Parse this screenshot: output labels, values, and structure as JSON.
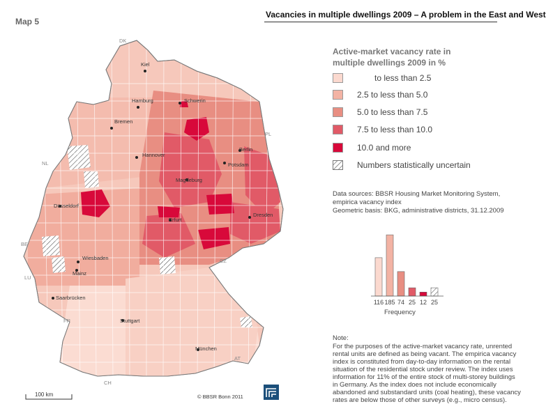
{
  "map_label": "Map 5",
  "title": "Vacancies in multiple dwellings 2009 – A problem in the East and West",
  "legend": {
    "title_line1": "Active-market vacancy rate in",
    "title_line2": "multiple dwellings 2009 in %",
    "items": [
      {
        "label": "to less than   2.5",
        "color": "#fbd9cf"
      },
      {
        "label": "2.5  to less than   5.0",
        "color": "#f3b3a4"
      },
      {
        "label": "5.0  to less than   7.5",
        "color": "#e88e82"
      },
      {
        "label": "7.5  to less than  10.0",
        "color": "#e15a67"
      },
      {
        "label": "10.0  and  more",
        "color": "#d8093a"
      },
      {
        "label": "Numbers statistically uncertain",
        "color": "hatched"
      }
    ]
  },
  "sources": {
    "line1": "Data sources: BBSR Housing Market Monitoring System,",
    "line2": "empirica vacancy index",
    "line3": "Geometric basis: BKG, administrative districts, 31.12.2009"
  },
  "histogram": {
    "values": [
      116,
      185,
      74,
      25,
      12,
      25
    ],
    "labels": [
      "116",
      "185",
      "74",
      "25",
      "12",
      "25"
    ],
    "axis_label": "Frequency"
  },
  "note": {
    "label": "Note:",
    "text": "For the purposes of the active-market vacancy rate, unrented rental units are defined as being vacant. The empirica vacancy index is constituted from day-to-day information on the rental situation of the residential stock under review. The index uses information for 11% of the entire stock of multi-storey buildings in Germany. As the index does not include economically abandoned and substandard units (coal heating), these vacancy rates are below those of other surveys (e.g., micro census)."
  },
  "cities": [
    "Kiel",
    "Hamburg",
    "Schwerin",
    "Bremen",
    "Hannover",
    "Berlin",
    "Potsdam",
    "Magdeburg",
    "Düsseldorf",
    "Erfurt",
    "Dresden",
    "Wiesbaden",
    "Mainz",
    "Saarbrücken",
    "Stuttgart",
    "München"
  ],
  "countries": [
    "DK",
    "PL",
    "NL",
    "BE",
    "LU",
    "CZ",
    "FR",
    "AT",
    "CH"
  ],
  "scale_label": "100 km",
  "copyright": "© BBSR Bonn 2011"
}
